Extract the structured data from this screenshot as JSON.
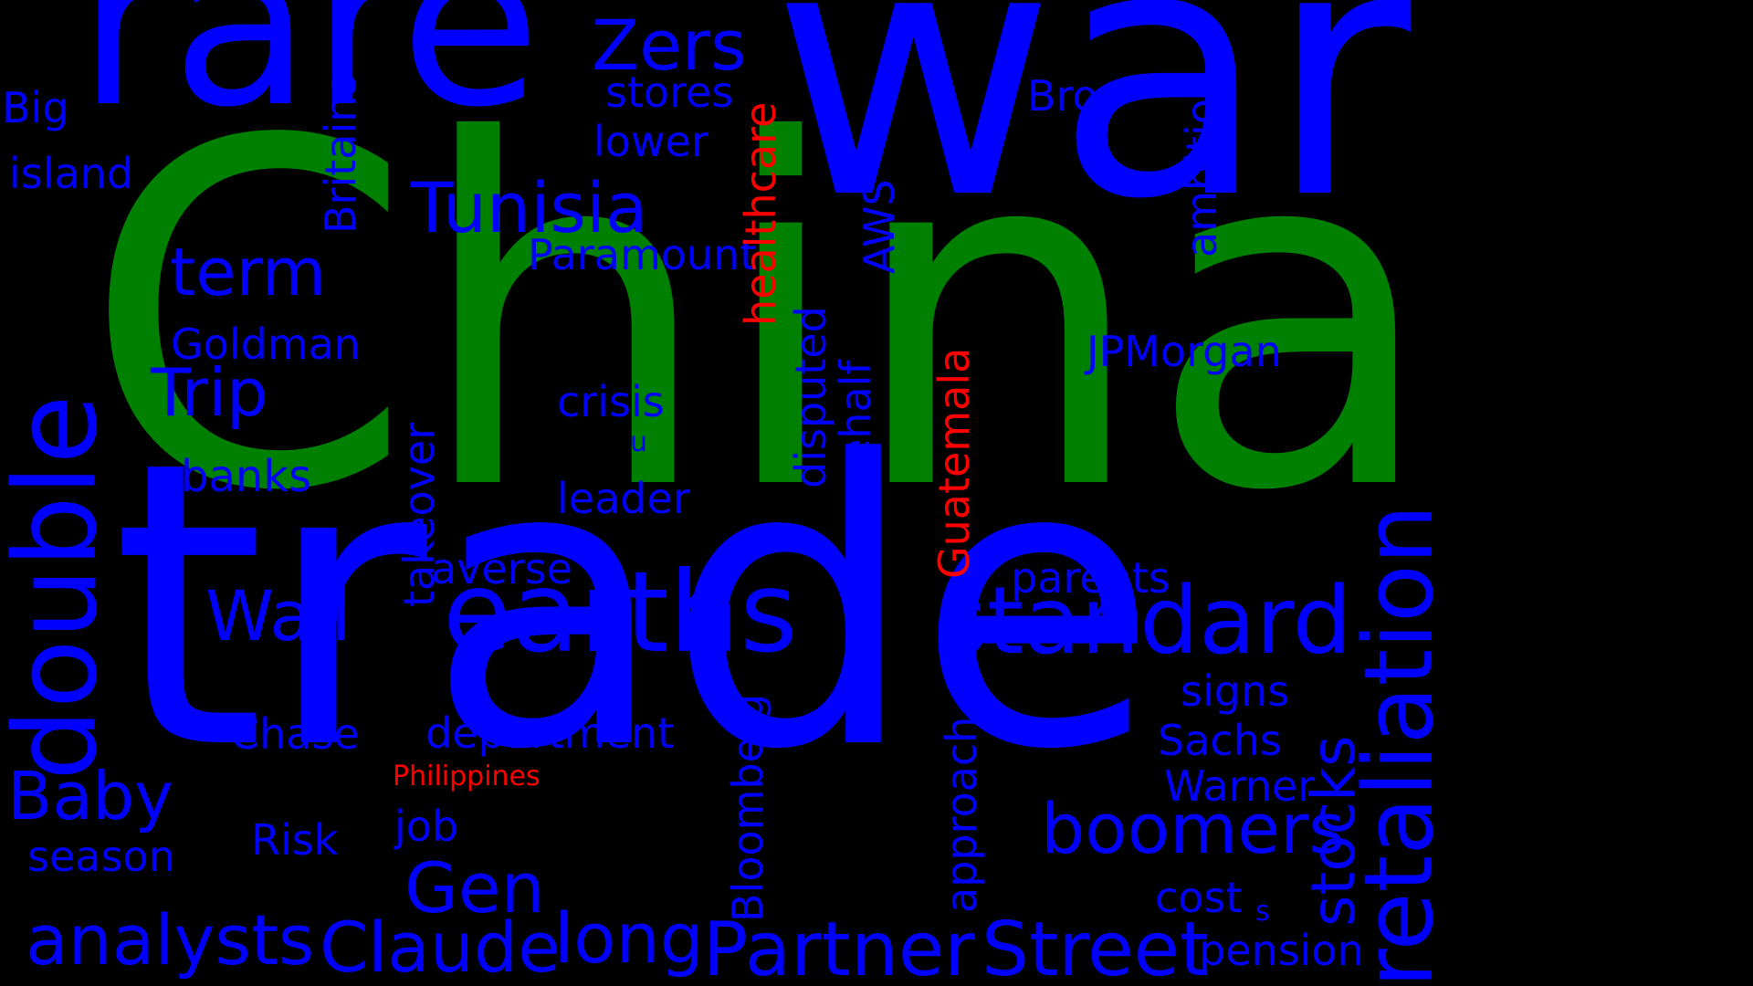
{
  "colors": {
    "background": "#000000",
    "blue": "#0000ff",
    "green": "#008000",
    "red": "#ff0000"
  },
  "words": {
    "china": "China",
    "trade": "trade",
    "war": "war",
    "rare": "rare",
    "earths": "earths",
    "standard": "standard",
    "double": "double",
    "retaliation": "retaliation",
    "tunisia": "Tunisia",
    "term": "term",
    "trip": "Trip",
    "goldman": "Goldman",
    "banks": "banks",
    "wall": "Wall",
    "baby": "Baby",
    "chase": "Chase",
    "risk": "Risk",
    "season": "season",
    "analysts": "analysts",
    "claude": "Claude",
    "gen": "Gen",
    "long": "long",
    "job": "job",
    "department": "department",
    "philippines": "Philippines",
    "partner": "Partner",
    "street": "Street",
    "boomers": "boomers",
    "stocks": "stocks",
    "sachs": "Sachs",
    "warner": "Warner",
    "signs": "signs",
    "cost": "cost",
    "s": "s",
    "pension": "pension",
    "parents": "parents",
    "jpmorgan": "JPMorgan",
    "bros": "Bros",
    "ambition": "ambition",
    "zers": "Zers",
    "stores": "stores",
    "lower": "lower",
    "paramount": "Paramount",
    "crisis": "crisis",
    "u": "u",
    "leader": "leader",
    "averse": "averse",
    "big": "Big",
    "island": "island",
    "britains": "Britains",
    "takeover": "takeover",
    "healthcare": "healthcare",
    "disputed": "disputed",
    "changehalf": "changehalf",
    "aws": "AWS",
    "guatemala": "Guatemala",
    "bloomberg": "Bloomberg",
    "approach": "approach"
  }
}
